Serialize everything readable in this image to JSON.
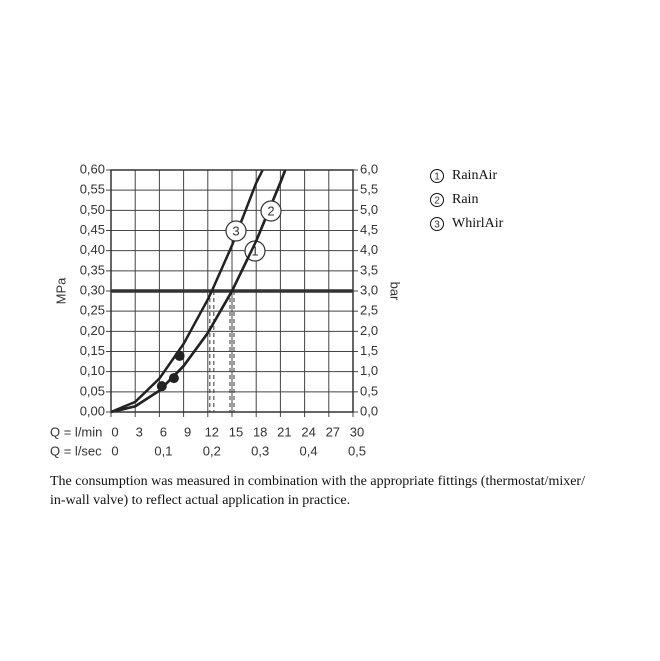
{
  "chart_data": {
    "type": "line",
    "series": [
      {
        "name": "RainAir",
        "label": "1",
        "color": "#222222",
        "x": [
          0,
          3,
          6,
          9,
          12,
          15,
          18,
          21,
          21.6
        ],
        "values": [
          0,
          0.014,
          0.053,
          0.114,
          0.196,
          0.3,
          0.424,
          0.569,
          0.6
        ]
      },
      {
        "name": "Rain",
        "label": "2",
        "color": "#222222",
        "x": [
          0,
          3,
          6,
          9,
          12,
          15,
          18,
          21,
          21.6
        ],
        "values": [
          0,
          0.014,
          0.053,
          0.114,
          0.196,
          0.3,
          0.424,
          0.569,
          0.6
        ]
      },
      {
        "name": "WhirlAir",
        "label": "3",
        "color": "#222222",
        "x": [
          0,
          3,
          6,
          9,
          12,
          12.5,
          15,
          18,
          18.8
        ],
        "values": [
          0,
          0.025,
          0.083,
          0.169,
          0.279,
          0.3,
          0.413,
          0.568,
          0.6
        ]
      }
    ],
    "points": {
      "x": [
        6.3,
        7.8,
        8.5
      ],
      "values": [
        0.064,
        0.084,
        0.139
      ],
      "color": "#222222"
    },
    "hline": 0.3,
    "drops": {
      "x": [
        12.5,
        15
      ],
      "values": [
        0.3,
        0.3
      ]
    },
    "ylabel": "MPa",
    "y2label": "bar",
    "xlabel": "Q = l/min",
    "x2label": "Q = l/sec",
    "xlim": [
      0,
      30
    ],
    "xticks": [
      0,
      3,
      6,
      9,
      12,
      15,
      18,
      21,
      24,
      27,
      30
    ],
    "x2lim": [
      0,
      0.5
    ],
    "x2ticks": [
      0,
      {
        "value": 0.1,
        "label": "0,1"
      },
      {
        "value": 0.2,
        "label": "0,2"
      },
      {
        "value": 0.3,
        "label": "0,3"
      },
      {
        "value": 0.4,
        "label": "0,4"
      },
      {
        "value": 0.5,
        "label": "0,5"
      }
    ],
    "ylim": [
      0,
      0.6
    ],
    "yticks": [
      {
        "value": 0,
        "label": "0,00"
      },
      {
        "value": 0.05,
        "label": "0,05"
      },
      {
        "value": 0.1,
        "label": "0,10"
      },
      {
        "value": 0.15,
        "label": "0,15"
      },
      {
        "value": 0.2,
        "label": "0,20"
      },
      {
        "value": 0.25,
        "label": "0,25"
      },
      {
        "value": 0.3,
        "label": "0,30"
      },
      {
        "value": 0.35,
        "label": "0,35"
      },
      {
        "value": 0.4,
        "label": "0,40"
      },
      {
        "value": 0.45,
        "label": "0,45"
      },
      {
        "value": 0.5,
        "label": "0,50"
      },
      {
        "value": 0.55,
        "label": "0,55"
      },
      {
        "value": 0.6,
        "label": "0,60"
      }
    ],
    "y2lim": [
      0,
      6
    ],
    "y2ticks": [
      {
        "value": 0,
        "label": "0,0"
      },
      {
        "value": 0.5,
        "label": "0,5"
      },
      {
        "value": 1,
        "label": "1,0"
      },
      {
        "value": 1.5,
        "label": "1,5"
      },
      {
        "value": 2,
        "label": "2,0"
      },
      {
        "value": 2.5,
        "label": "2,5"
      },
      {
        "value": 3,
        "label": "3,0"
      },
      {
        "value": 3.5,
        "label": "3,5"
      },
      {
        "value": 4,
        "label": "4,0"
      },
      {
        "value": 4.5,
        "label": "4,5"
      },
      {
        "value": 5,
        "label": "5,0"
      },
      {
        "value": 5.5,
        "label": "5,5"
      },
      {
        "value": 6,
        "label": "6,0"
      }
    ],
    "grid": true,
    "footnote": [
      "The consumption was measured in combination with the appropriate fittings (thermostat/mixer/",
      "in-wall valve) to reflect actual application in practice."
    ]
  }
}
